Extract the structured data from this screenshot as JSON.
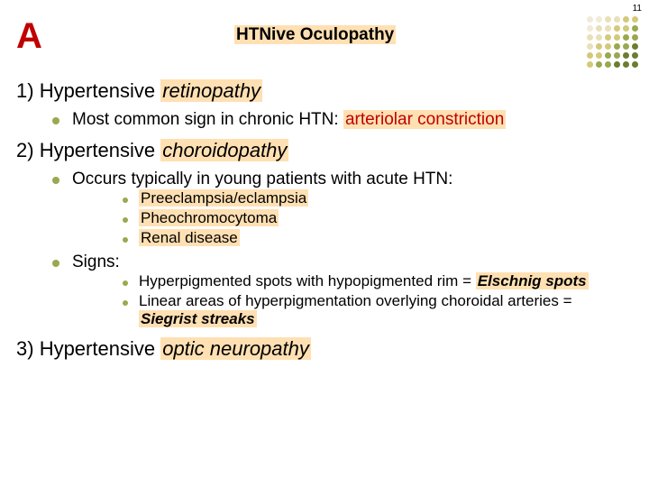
{
  "page_number": "11",
  "letter": "A",
  "title_plain": "HTNive Oculopathy",
  "colors": {
    "accent_red": "#c00000",
    "highlight": "#ffe0b3",
    "bullet": "#9aa84f"
  },
  "dot_grid": {
    "rows": 6,
    "cols": 6,
    "palette": {
      "vlight": "#f0ebd8",
      "light": "#e8e0b8",
      "med": "#d4c97a",
      "dark": "#9aa84f",
      "vdark": "#6b7d2f"
    },
    "cells": [
      [
        "vlight",
        "vlight",
        "light",
        "light",
        "med",
        "med"
      ],
      [
        "vlight",
        "light",
        "light",
        "med",
        "med",
        "dark"
      ],
      [
        "light",
        "light",
        "med",
        "med",
        "dark",
        "dark"
      ],
      [
        "light",
        "med",
        "med",
        "dark",
        "dark",
        "vdark"
      ],
      [
        "med",
        "med",
        "dark",
        "dark",
        "vdark",
        "vdark"
      ],
      [
        "med",
        "dark",
        "dark",
        "vdark",
        "vdark",
        "vdark"
      ]
    ]
  },
  "sections": [
    {
      "num": "1)",
      "label": "Hypertensive",
      "italic_hl": "retinopathy",
      "items": [
        {
          "text": "Most common sign in chronic HTN:",
          "red_hl": "arteriolar constriction"
        }
      ]
    },
    {
      "num": "2)",
      "label": "Hypertensive",
      "italic_hl": "choroidopathy",
      "items": [
        {
          "text": "Occurs typically in young patients with acute HTN:",
          "sub": [
            {
              "hl": "Preeclampsia/eclampsia"
            },
            {
              "hl": "Pheochromocytoma"
            },
            {
              "hl": "Renal disease"
            }
          ]
        },
        {
          "text": "Signs:",
          "sub2": [
            {
              "pre": "Hyperpigmented spots with hypopigmented rim = ",
              "bi": "Elschnig spots"
            },
            {
              "pre": "Linear areas of hyperpigmentation overlying choroidal arteries = ",
              "bi": "Siegrist streaks"
            }
          ]
        }
      ]
    },
    {
      "num": "3)",
      "label": "Hypertensive",
      "italic_hl": "optic neuropathy"
    }
  ]
}
